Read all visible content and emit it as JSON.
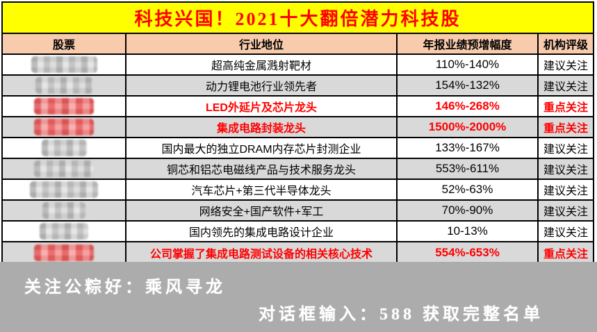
{
  "title": "科技兴国！2021十大翻倍潜力科技股",
  "colors": {
    "title_bg": "#ffff00",
    "title_text": "#ff0000",
    "header_bg": "#f8cbad",
    "alt_row_bg": "#d9d9d9",
    "highlight_text": "#ff0000",
    "footer_bg": "#acacac",
    "footer_text": "#ffffff"
  },
  "table": {
    "columns": [
      "股票",
      "行业地位",
      "年报业绩预增幅度",
      "机构评级"
    ],
    "rows": [
      {
        "stock": "（马赛克遮挡）",
        "censor": "gray",
        "censor_width": 95,
        "position": "超高纯金属溅射靶材",
        "growth": "110%-140%",
        "rating": "建议关注",
        "highlight": false
      },
      {
        "stock": "（马赛克遮挡）",
        "censor": "gray",
        "censor_width": 82,
        "position": "动力锂电池行业领先者",
        "growth": "154%-132%",
        "rating": "建议关注",
        "highlight": false
      },
      {
        "stock": "（马赛克遮挡）",
        "censor": "red",
        "censor_width": 86,
        "position": "LED外延片及芯片龙头",
        "growth": "146%-268%",
        "rating": "重点关注",
        "highlight": true
      },
      {
        "stock": "（马赛克遮挡）",
        "censor": "red",
        "censor_width": 86,
        "position": "集成电路封装龙头",
        "growth": "1500%-2000%",
        "rating": "重点关注",
        "highlight": true
      },
      {
        "stock": "（马赛克遮挡）",
        "censor": "gray",
        "censor_width": 65,
        "position": "国内最大的独立DRAM内存芯片封测企业",
        "growth": "133%-167%",
        "rating": "建议关注",
        "highlight": false
      },
      {
        "stock": "（马赛克遮挡）",
        "censor": "gray",
        "censor_width": 86,
        "position": "铜芯和铝芯电磁线产品与技术服务龙头",
        "growth": "553%-611%",
        "rating": "建议关注",
        "highlight": false
      },
      {
        "stock": "（马赛克遮挡）",
        "censor": "gray",
        "censor_width": 98,
        "position": "汽车芯片+第三代半导体龙头",
        "growth": "52%-63%",
        "rating": "建议关注",
        "highlight": false
      },
      {
        "stock": "（马赛克遮挡）",
        "censor": "gray",
        "censor_width": 62,
        "position": "网络安全+国产软件+军工",
        "growth": "70%-90%",
        "rating": "建议关注",
        "highlight": false
      },
      {
        "stock": "（马赛克遮挡）",
        "censor": "gray",
        "censor_width": 70,
        "position": "国内领先的集成电路设计企业",
        "growth": "10-13%",
        "rating": "建议关注",
        "highlight": false
      },
      {
        "stock": "（马赛克遮挡）",
        "censor": "red",
        "censor_width": 86,
        "position": "公司掌握了集成电路测试设备的相关核心技术",
        "growth": "554%-653%",
        "rating": "重点关注",
        "highlight": true
      }
    ]
  },
  "footer": {
    "line1": "关注公粽好：乘风寻龙",
    "line2": "对话框输入：588 获取完整名单"
  }
}
